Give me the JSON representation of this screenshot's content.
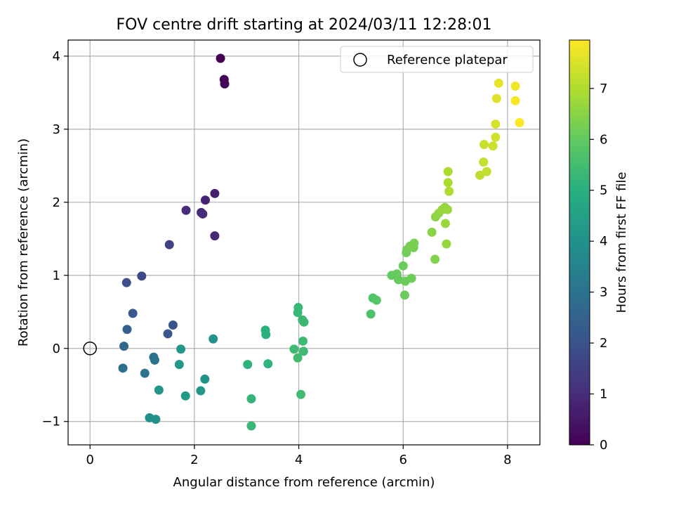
{
  "chart_data": {
    "type": "scatter",
    "title": "FOV centre drift starting at 2024/03/11 12:28:01",
    "xlabel": "Angular distance from reference (arcmin)",
    "ylabel": "Rotation from reference (arcmin)",
    "xlim": [
      -0.42,
      8.62
    ],
    "ylim": [
      -1.32,
      4.22
    ],
    "xticks": [
      0,
      2,
      4,
      6,
      8
    ],
    "yticks": [
      -1,
      0,
      1,
      2,
      3,
      4
    ],
    "grid": true,
    "legend": {
      "placement": "top-right",
      "entries": [
        "Reference platepar"
      ]
    },
    "reference_point": {
      "label": "Reference platepar",
      "x": 0,
      "y": 0
    },
    "colorbar": {
      "label": "Hours from first FF file",
      "range": [
        0,
        7.95
      ],
      "ticks": [
        0,
        1,
        2,
        3,
        4,
        5,
        6,
        7
      ],
      "colormap": "viridis"
    },
    "points": [
      {
        "x": 2.5,
        "y": 3.97,
        "h": 0.0
      },
      {
        "x": 2.57,
        "y": 3.68,
        "h": 0.03
      },
      {
        "x": 2.58,
        "y": 3.62,
        "h": 0.06
      },
      {
        "x": 2.39,
        "y": 2.12,
        "h": 0.7
      },
      {
        "x": 2.21,
        "y": 2.03,
        "h": 0.8
      },
      {
        "x": 2.13,
        "y": 1.86,
        "h": 0.95
      },
      {
        "x": 2.16,
        "y": 1.84,
        "h": 0.98
      },
      {
        "x": 1.84,
        "y": 1.89,
        "h": 1.0
      },
      {
        "x": 2.39,
        "y": 1.54,
        "h": 0.9
      },
      {
        "x": 1.52,
        "y": 1.42,
        "h": 1.55
      },
      {
        "x": 0.99,
        "y": 0.99,
        "h": 1.75
      },
      {
        "x": 0.7,
        "y": 0.9,
        "h": 1.9
      },
      {
        "x": 0.82,
        "y": 0.48,
        "h": 2.2
      },
      {
        "x": 0.71,
        "y": 0.26,
        "h": 2.4
      },
      {
        "x": 1.59,
        "y": 0.32,
        "h": 2.1
      },
      {
        "x": 1.49,
        "y": 0.2,
        "h": 2.2
      },
      {
        "x": 0.65,
        "y": 0.03,
        "h": 2.7
      },
      {
        "x": 0.63,
        "y": -0.27,
        "h": 2.9
      },
      {
        "x": 1.22,
        "y": -0.12,
        "h": 2.85
      },
      {
        "x": 1.24,
        "y": -0.16,
        "h": 3.0
      },
      {
        "x": 1.05,
        "y": -0.34,
        "h": 3.1
      },
      {
        "x": 1.74,
        "y": -0.01,
        "h": 4.2
      },
      {
        "x": 2.36,
        "y": 0.13,
        "h": 4.1
      },
      {
        "x": 1.71,
        "y": -0.22,
        "h": 4.2
      },
      {
        "x": 2.2,
        "y": -0.42,
        "h": 4.05
      },
      {
        "x": 1.32,
        "y": -0.57,
        "h": 4.15
      },
      {
        "x": 2.12,
        "y": -0.58,
        "h": 4.2
      },
      {
        "x": 1.83,
        "y": -0.65,
        "h": 4.3
      },
      {
        "x": 1.14,
        "y": -0.95,
        "h": 3.95
      },
      {
        "x": 1.26,
        "y": -0.97,
        "h": 4.0
      },
      {
        "x": 3.36,
        "y": 0.25,
        "h": 5.0
      },
      {
        "x": 3.37,
        "y": 0.19,
        "h": 5.05
      },
      {
        "x": 3.02,
        "y": -0.22,
        "h": 5.1
      },
      {
        "x": 3.41,
        "y": -0.21,
        "h": 5.15
      },
      {
        "x": 3.09,
        "y": -0.69,
        "h": 5.2
      },
      {
        "x": 3.09,
        "y": -1.06,
        "h": 5.25
      },
      {
        "x": 3.99,
        "y": 0.56,
        "h": 5.3
      },
      {
        "x": 3.98,
        "y": 0.49,
        "h": 5.3
      },
      {
        "x": 4.07,
        "y": 0.39,
        "h": 5.35
      },
      {
        "x": 4.1,
        "y": 0.36,
        "h": 5.35
      },
      {
        "x": 4.08,
        "y": 0.1,
        "h": 5.4
      },
      {
        "x": 3.91,
        "y": -0.01,
        "h": 5.4
      },
      {
        "x": 4.09,
        "y": -0.04,
        "h": 5.4
      },
      {
        "x": 3.98,
        "y": -0.13,
        "h": 5.45
      },
      {
        "x": 4.04,
        "y": -0.63,
        "h": 5.45
      },
      {
        "x": 5.38,
        "y": 0.47,
        "h": 5.7
      },
      {
        "x": 5.42,
        "y": 0.69,
        "h": 5.75
      },
      {
        "x": 5.49,
        "y": 0.66,
        "h": 5.8
      },
      {
        "x": 5.78,
        "y": 1.0,
        "h": 6.0
      },
      {
        "x": 5.88,
        "y": 1.02,
        "h": 6.05
      },
      {
        "x": 5.91,
        "y": 0.94,
        "h": 6.05
      },
      {
        "x": 6.0,
        "y": 1.13,
        "h": 6.1
      },
      {
        "x": 6.04,
        "y": 0.92,
        "h": 6.1
      },
      {
        "x": 6.03,
        "y": 0.73,
        "h": 6.1
      },
      {
        "x": 6.16,
        "y": 0.96,
        "h": 6.15
      },
      {
        "x": 6.06,
        "y": 1.31,
        "h": 6.2
      },
      {
        "x": 6.07,
        "y": 1.35,
        "h": 6.2
      },
      {
        "x": 6.13,
        "y": 1.4,
        "h": 6.25
      },
      {
        "x": 6.2,
        "y": 1.38,
        "h": 6.25
      },
      {
        "x": 6.21,
        "y": 1.44,
        "h": 6.3
      },
      {
        "x": 6.61,
        "y": 1.22,
        "h": 6.4
      },
      {
        "x": 6.55,
        "y": 1.59,
        "h": 6.5
      },
      {
        "x": 6.62,
        "y": 1.8,
        "h": 6.55
      },
      {
        "x": 6.68,
        "y": 1.85,
        "h": 6.6
      },
      {
        "x": 6.75,
        "y": 1.9,
        "h": 6.65
      },
      {
        "x": 6.8,
        "y": 1.93,
        "h": 6.65
      },
      {
        "x": 6.85,
        "y": 1.9,
        "h": 6.7
      },
      {
        "x": 6.81,
        "y": 1.71,
        "h": 6.7
      },
      {
        "x": 6.83,
        "y": 1.43,
        "h": 6.65
      },
      {
        "x": 6.86,
        "y": 2.42,
        "h": 6.95
      },
      {
        "x": 6.86,
        "y": 2.27,
        "h": 6.95
      },
      {
        "x": 6.88,
        "y": 2.15,
        "h": 6.95
      },
      {
        "x": 7.47,
        "y": 2.37,
        "h": 7.15
      },
      {
        "x": 7.6,
        "y": 2.42,
        "h": 7.2
      },
      {
        "x": 7.54,
        "y": 2.55,
        "h": 7.25
      },
      {
        "x": 7.55,
        "y": 2.79,
        "h": 7.3
      },
      {
        "x": 7.72,
        "y": 2.77,
        "h": 7.35
      },
      {
        "x": 7.77,
        "y": 2.89,
        "h": 7.4
      },
      {
        "x": 7.77,
        "y": 3.07,
        "h": 7.45
      },
      {
        "x": 7.79,
        "y": 3.42,
        "h": 7.55
      },
      {
        "x": 7.83,
        "y": 3.63,
        "h": 7.65
      },
      {
        "x": 8.15,
        "y": 3.59,
        "h": 7.8
      },
      {
        "x": 8.15,
        "y": 3.39,
        "h": 7.85
      },
      {
        "x": 8.23,
        "y": 3.09,
        "h": 7.95
      }
    ]
  }
}
